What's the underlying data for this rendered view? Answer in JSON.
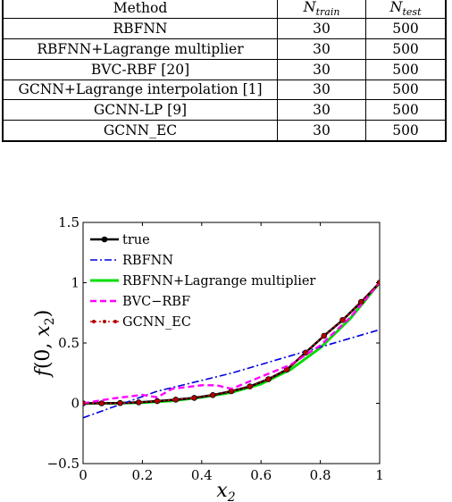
{
  "table": {
    "headers": {
      "method": "Method",
      "ntrain_base": "N",
      "ntrain_sub": "train",
      "ntest_base": "N",
      "ntest_sub": "test"
    },
    "rows": [
      {
        "method": "RBFNN",
        "ntrain": "30",
        "ntest": "500"
      },
      {
        "method": "RBFNN+Lagrange multiplier",
        "ntrain": "30",
        "ntest": "500"
      },
      {
        "method": "BVC-RBF [20]",
        "ntrain": "30",
        "ntest": "500"
      },
      {
        "method": "GCNN+Lagrange interpolation [1]",
        "ntrain": "30",
        "ntest": "500"
      },
      {
        "method": "GCNN-LP [9]",
        "ntrain": "30",
        "ntest": "500"
      },
      {
        "method": "GCNN_EC",
        "ntrain": "30",
        "ntest": "500"
      }
    ]
  },
  "chart_data": {
    "type": "line",
    "title": "",
    "xlabel": "x2",
    "ylabel": "f(0, x2)",
    "xlim": [
      0,
      1
    ],
    "ylim": [
      -0.5,
      1.5
    ],
    "xticks": [
      "0",
      "0.2",
      "0.4",
      "0.6",
      "0.8",
      "1"
    ],
    "yticks": [
      "−0.5",
      "0",
      "0.5",
      "1",
      "1.5"
    ],
    "legend_position": "top-left",
    "grid": false,
    "series": [
      {
        "name": "true",
        "color": "#000000",
        "style": "solid-marker",
        "x": [
          0,
          0.0625,
          0.125,
          0.1875,
          0.25,
          0.3125,
          0.375,
          0.4375,
          0.5,
          0.5625,
          0.625,
          0.6875,
          0.75,
          0.8125,
          0.875,
          0.9375,
          1
        ],
        "y": [
          0,
          0,
          0.002,
          0.008,
          0.018,
          0.03,
          0.045,
          0.068,
          0.1,
          0.14,
          0.2,
          0.28,
          0.42,
          0.56,
          0.69,
          0.84,
          1.0
        ]
      },
      {
        "name": "RBFNN",
        "color": "#0000dd",
        "style": "dashdot",
        "x": [
          0,
          0.25,
          0.5,
          0.75,
          1
        ],
        "y": [
          -0.12,
          0.1,
          0.25,
          0.43,
          0.61
        ]
      },
      {
        "name": "RBFNN+Lagrange multiplier",
        "color": "#00dd00",
        "style": "solid",
        "x": [
          0,
          0.1,
          0.2,
          0.3,
          0.4,
          0.5,
          0.6,
          0.7,
          0.8,
          0.9,
          1
        ],
        "y": [
          0,
          0,
          0.005,
          0.02,
          0.05,
          0.09,
          0.16,
          0.28,
          0.46,
          0.7,
          1.0
        ]
      },
      {
        "name": "BVC−RBF",
        "color": "#ff00ff",
        "style": "dashed",
        "x": [
          0,
          0.1,
          0.2,
          0.25,
          0.3,
          0.4,
          0.45,
          0.5,
          0.6,
          0.7,
          0.8,
          0.9,
          1
        ],
        "y": [
          0,
          0.04,
          0.07,
          0.05,
          0.12,
          0.15,
          0.15,
          0.12,
          0.22,
          0.32,
          0.48,
          0.71,
          1.0
        ]
      },
      {
        "name": "GCNN_EC",
        "color": "#dd0000",
        "style": "dotted",
        "x": [
          0,
          0.0625,
          0.125,
          0.1875,
          0.25,
          0.3125,
          0.375,
          0.4375,
          0.5,
          0.5625,
          0.625,
          0.6875,
          0.75,
          0.8125,
          0.875,
          0.9375,
          1
        ],
        "y": [
          0,
          0,
          0.002,
          0.008,
          0.018,
          0.03,
          0.045,
          0.068,
          0.1,
          0.14,
          0.2,
          0.28,
          0.42,
          0.56,
          0.69,
          0.84,
          1.0
        ]
      }
    ]
  }
}
